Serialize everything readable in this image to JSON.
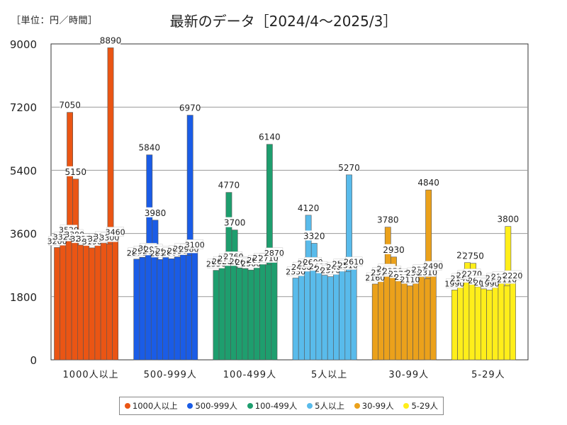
{
  "chart_data": {
    "type": "bar",
    "unit_label": "［単位：円／時間］",
    "title": "最新のデータ［2024/4～2025/3］",
    "yticks": [
      0,
      1800,
      3600,
      5400,
      7200,
      9000
    ],
    "ylim": [
      0,
      9000
    ],
    "groups": [
      {
        "name": "1000人以上",
        "color": "#ea5514",
        "values": [
          3200,
          3320,
          3520,
          3390,
          3270,
          3270,
          3190,
          3270,
          3330,
          3300,
          3460
        ],
        "peaks": [
          7050,
          5150,
          8890
        ]
      },
      {
        "name": "500-999人",
        "color": "#1a5ce6",
        "values": [
          2870,
          2920,
          3000,
          2970,
          2860,
          2920,
          2880,
          2930,
          2990,
          2980,
          3100
        ],
        "peaks": [
          5840,
          3980,
          6970
        ]
      },
      {
        "name": "100-499人",
        "color": "#1e9e6e",
        "values": [
          2550,
          2620,
          2700,
          2760,
          2620,
          2600,
          2560,
          2660,
          2720,
          2710,
          2870
        ],
        "peaks": [
          4770,
          3700,
          6140
        ]
      },
      {
        "name": "5人以上",
        "color": "#59bbeb",
        "values": [
          2330,
          2460,
          2560,
          2600,
          2480,
          2410,
          2370,
          2460,
          2550,
          2510,
          2610
        ],
        "peaks": [
          4120,
          3320,
          5270
        ]
      },
      {
        "name": "30-99人",
        "color": "#eba11b",
        "values": [
          2160,
          2310,
          2410,
          2350,
          2270,
          2180,
          2110,
          2300,
          2390,
          2310,
          2490
        ],
        "peaks": [
          3780,
          2930,
          4840
        ]
      },
      {
        "name": "5-29人",
        "color": "#ffee1a",
        "values": [
          1990,
          2140,
          2230,
          2270,
          2080,
          2020,
          1990,
          2150,
          2190,
          2110,
          2220
        ],
        "peaks": [
          2770,
          2750,
          3800
        ]
      }
    ]
  }
}
